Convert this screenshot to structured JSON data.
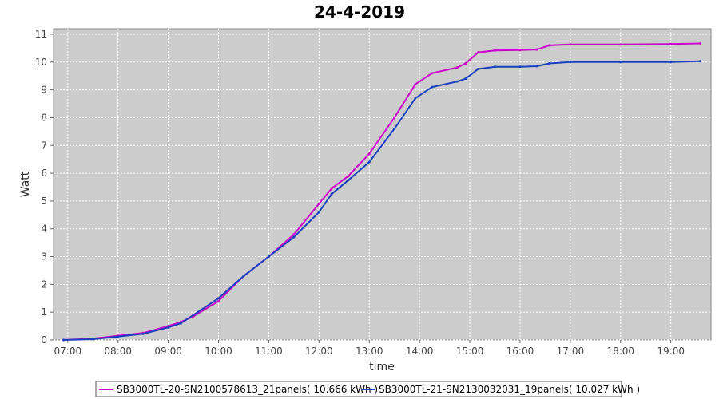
{
  "chart_data": {
    "type": "line",
    "title": "24-4-2019",
    "xlabel": "time",
    "ylabel": "Watt",
    "xlim": [
      "06:43",
      "19:48"
    ],
    "ylim": [
      0,
      11.2
    ],
    "grid": true,
    "legend_position": "bottom",
    "x_ticks": [
      "07:00",
      "08:00",
      "09:00",
      "10:00",
      "11:00",
      "12:00",
      "13:00",
      "14:00",
      "15:00",
      "16:00",
      "17:00",
      "18:00",
      "19:00"
    ],
    "y_ticks": [
      0,
      1,
      2,
      3,
      4,
      5,
      6,
      7,
      8,
      9,
      10,
      11
    ],
    "x": [
      "06:55",
      "07:30",
      "08:00",
      "08:30",
      "09:00",
      "09:15",
      "09:30",
      "10:00",
      "10:30",
      "11:00",
      "11:30",
      "12:00",
      "12:15",
      "12:35",
      "13:00",
      "13:30",
      "13:55",
      "14:15",
      "14:45",
      "14:55",
      "15:10",
      "15:30",
      "16:00",
      "16:20",
      "16:35",
      "17:00",
      "18:00",
      "19:00",
      "19:35"
    ],
    "series": [
      {
        "name": "SB3000TL-20-SN2100578613_21panels( 10.666 kWh )",
        "color": "#cc00cc",
        "values": [
          0.0,
          0.05,
          0.15,
          0.25,
          0.5,
          0.65,
          0.85,
          1.4,
          2.3,
          3.0,
          3.8,
          4.9,
          5.45,
          5.9,
          6.7,
          8.0,
          9.2,
          9.6,
          9.8,
          9.95,
          10.35,
          10.42,
          10.43,
          10.45,
          10.6,
          10.63,
          10.63,
          10.65,
          10.67
        ]
      },
      {
        "name": "SB3000TL-21-SN2130032031_19panels( 10.027 kWh )",
        "color": "#1a3fbf",
        "values": [
          0.0,
          0.03,
          0.12,
          0.22,
          0.45,
          0.6,
          0.9,
          1.5,
          2.3,
          3.0,
          3.7,
          4.6,
          5.25,
          5.75,
          6.4,
          7.6,
          8.7,
          9.1,
          9.3,
          9.4,
          9.75,
          9.83,
          9.83,
          9.85,
          9.95,
          10.0,
          10.0,
          10.0,
          10.03
        ]
      }
    ]
  }
}
